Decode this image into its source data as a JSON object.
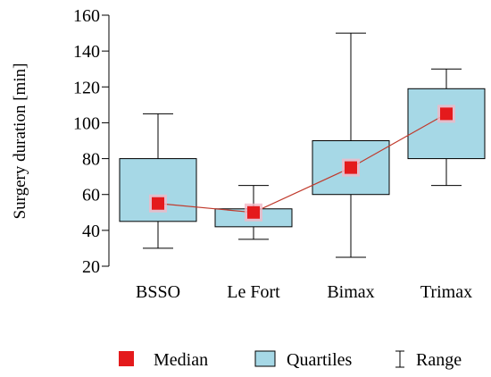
{
  "chart_data": {
    "type": "box",
    "ylabel": "Surgery duration [min]",
    "ylim": [
      20,
      160
    ],
    "yticks": [
      20,
      40,
      60,
      80,
      100,
      120,
      140,
      160
    ],
    "grid": false,
    "categories": [
      "BSSO",
      "Le Fort",
      "Bimax",
      "Trimax"
    ],
    "boxes": [
      {
        "min": 30,
        "q1": 45,
        "median": 55,
        "q3": 80,
        "max": 105
      },
      {
        "min": 35,
        "q1": 42,
        "median": 50,
        "q3": 52,
        "max": 65
      },
      {
        "min": 25,
        "q1": 60,
        "median": 75,
        "q3": 90,
        "max": 150
      },
      {
        "min": 65,
        "q1": 80,
        "median": 105,
        "q3": 119,
        "max": 130
      }
    ],
    "legend": {
      "placement": "bottom",
      "entries": [
        {
          "key": "median",
          "label": "Median"
        },
        {
          "key": "quartiles",
          "label": "Quartiles"
        },
        {
          "key": "range",
          "label": "Range"
        }
      ]
    },
    "colors": {
      "box_fill": "#a6d8e6",
      "median_marker": "#e41a1c",
      "median_line": "#c0392b",
      "median_glow": "#f2b8c6",
      "stroke": "#000000"
    }
  }
}
